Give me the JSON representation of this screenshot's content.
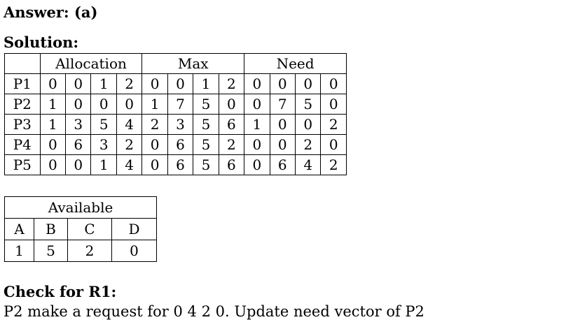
{
  "answer_heading": "Answer: (a)",
  "solution_heading": "Solution:",
  "resource_table": {
    "headers": [
      "Allocation",
      "Max",
      "Need"
    ],
    "rows": [
      {
        "process": "P1",
        "allocation": [
          "0",
          "0",
          "1",
          "2"
        ],
        "max": [
          "0",
          "0",
          "1",
          "2"
        ],
        "need": [
          "0",
          "0",
          "0",
          "0"
        ]
      },
      {
        "process": "P2",
        "allocation": [
          "1",
          "0",
          "0",
          "0"
        ],
        "max": [
          "1",
          "7",
          "5",
          "0"
        ],
        "need": [
          "0",
          "7",
          "5",
          "0"
        ]
      },
      {
        "process": "P3",
        "allocation": [
          "1",
          "3",
          "5",
          "4"
        ],
        "max": [
          "2",
          "3",
          "5",
          "6"
        ],
        "need": [
          "1",
          "0",
          "0",
          "2"
        ]
      },
      {
        "process": "P4",
        "allocation": [
          "0",
          "6",
          "3",
          "2"
        ],
        "max": [
          "0",
          "6",
          "5",
          "2"
        ],
        "need": [
          "0",
          "0",
          "2",
          "0"
        ]
      },
      {
        "process": "P5",
        "allocation": [
          "0",
          "0",
          "1",
          "4"
        ],
        "max": [
          "0",
          "6",
          "5",
          "6"
        ],
        "need": [
          "0",
          "6",
          "4",
          "2"
        ]
      }
    ]
  },
  "available_table": {
    "title": "Available",
    "columns": [
      "A",
      "B",
      "C",
      "D"
    ],
    "values": [
      "1",
      "5",
      "2",
      "0"
    ]
  },
  "check_heading": "Check for R1:",
  "check_text": "P2 make a request for 0 4 2 0. Update need vector of P2"
}
